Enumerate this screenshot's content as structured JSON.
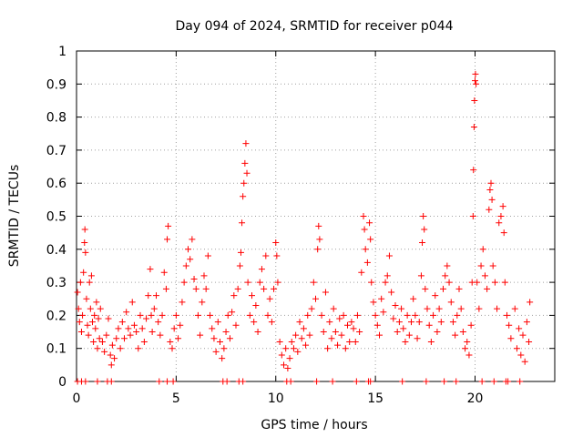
{
  "chart_data": {
    "type": "scatter",
    "title": "Day 094 of 2024, SRMTID for receiver p044",
    "xlabel": "GPS time / hours",
    "ylabel": "SRMTID / TECUs",
    "xlim": [
      0,
      24
    ],
    "ylim": [
      0,
      1
    ],
    "xticks": [
      0,
      5,
      10,
      15,
      20
    ],
    "xtick_labels": [
      "0",
      "5",
      "10",
      "15",
      "20"
    ],
    "yticks": [
      0,
      0.1,
      0.2,
      0.3,
      0.4,
      0.5,
      0.6,
      0.7,
      0.8,
      0.9,
      1
    ],
    "ytick_labels": [
      "0",
      "0.1",
      "0.2",
      "0.3",
      "0.4",
      "0.5",
      "0.6",
      "0.7",
      "0.8",
      "0.9",
      "1"
    ],
    "grid": true,
    "marker": "+",
    "color": "#ff0000",
    "series": [
      {
        "name": "SRMTID",
        "points": [
          [
            0.05,
            0.27
          ],
          [
            0.1,
            0.22
          ],
          [
            0.15,
            0.18
          ],
          [
            0.2,
            0.3
          ],
          [
            0.25,
            0.15
          ],
          [
            0.3,
            0.2
          ],
          [
            0.35,
            0.33
          ],
          [
            0.4,
            0.42
          ],
          [
            0.42,
            0.46
          ],
          [
            0.45,
            0.39
          ],
          [
            0.5,
            0.25
          ],
          [
            0.55,
            0.17
          ],
          [
            0.6,
            0.14
          ],
          [
            0.65,
            0.3
          ],
          [
            0.7,
            0.22
          ],
          [
            0.75,
            0.32
          ],
          [
            0.8,
            0.18
          ],
          [
            0.85,
            0.12
          ],
          [
            0.9,
            0.2
          ],
          [
            0.95,
            0.16
          ],
          [
            1.0,
            0.24
          ],
          [
            1.05,
            0.1
          ],
          [
            1.1,
            0.19
          ],
          [
            1.15,
            0.13
          ],
          [
            1.2,
            0.22
          ],
          [
            1.3,
            0.12
          ],
          [
            1.4,
            0.09
          ],
          [
            1.5,
            0.14
          ],
          [
            1.6,
            0.19
          ],
          [
            1.7,
            0.08
          ],
          [
            1.75,
            0.05
          ],
          [
            1.8,
            0.11
          ],
          [
            1.9,
            0.07
          ],
          [
            2.0,
            0.13
          ],
          [
            2.1,
            0.16
          ],
          [
            2.2,
            0.1
          ],
          [
            2.3,
            0.18
          ],
          [
            2.4,
            0.13
          ],
          [
            2.5,
            0.21
          ],
          [
            2.6,
            0.16
          ],
          [
            2.7,
            0.14
          ],
          [
            2.8,
            0.24
          ],
          [
            2.9,
            0.17
          ],
          [
            3.0,
            0.15
          ],
          [
            3.1,
            0.1
          ],
          [
            3.2,
            0.2
          ],
          [
            3.3,
            0.16
          ],
          [
            3.4,
            0.12
          ],
          [
            3.5,
            0.19
          ],
          [
            3.6,
            0.26
          ],
          [
            3.7,
            0.34
          ],
          [
            3.75,
            0.2
          ],
          [
            3.8,
            0.15
          ],
          [
            3.9,
            0.22
          ],
          [
            4.0,
            0.26
          ],
          [
            4.1,
            0.18
          ],
          [
            4.2,
            0.14
          ],
          [
            4.3,
            0.2
          ],
          [
            4.4,
            0.33
          ],
          [
            4.5,
            0.28
          ],
          [
            4.55,
            0.43
          ],
          [
            4.6,
            0.47
          ],
          [
            4.7,
            0.12
          ],
          [
            4.8,
            0.1
          ],
          [
            4.9,
            0.16
          ],
          [
            5.0,
            0.2
          ],
          [
            5.1,
            0.13
          ],
          [
            5.2,
            0.17
          ],
          [
            5.3,
            0.24
          ],
          [
            5.4,
            0.3
          ],
          [
            5.5,
            0.35
          ],
          [
            5.6,
            0.4
          ],
          [
            5.7,
            0.37
          ],
          [
            5.8,
            0.43
          ],
          [
            5.9,
            0.31
          ],
          [
            6.0,
            0.28
          ],
          [
            6.1,
            0.2
          ],
          [
            6.2,
            0.14
          ],
          [
            6.3,
            0.24
          ],
          [
            6.4,
            0.32
          ],
          [
            6.5,
            0.28
          ],
          [
            6.6,
            0.38
          ],
          [
            6.7,
            0.2
          ],
          [
            6.8,
            0.16
          ],
          [
            6.9,
            0.13
          ],
          [
            7.0,
            0.09
          ],
          [
            7.1,
            0.18
          ],
          [
            7.2,
            0.12
          ],
          [
            7.3,
            0.07
          ],
          [
            7.4,
            0.1
          ],
          [
            7.5,
            0.15
          ],
          [
            7.6,
            0.2
          ],
          [
            7.7,
            0.13
          ],
          [
            7.8,
            0.21
          ],
          [
            7.9,
            0.26
          ],
          [
            8.0,
            0.17
          ],
          [
            8.1,
            0.28
          ],
          [
            8.2,
            0.35
          ],
          [
            8.25,
            0.39
          ],
          [
            8.3,
            0.48
          ],
          [
            8.35,
            0.56
          ],
          [
            8.4,
            0.6
          ],
          [
            8.45,
            0.66
          ],
          [
            8.5,
            0.72
          ],
          [
            8.55,
            0.63
          ],
          [
            8.6,
            0.3
          ],
          [
            8.7,
            0.2
          ],
          [
            8.8,
            0.26
          ],
          [
            8.9,
            0.18
          ],
          [
            9.0,
            0.23
          ],
          [
            9.1,
            0.15
          ],
          [
            9.2,
            0.3
          ],
          [
            9.3,
            0.34
          ],
          [
            9.4,
            0.28
          ],
          [
            9.5,
            0.38
          ],
          [
            9.6,
            0.2
          ],
          [
            9.7,
            0.25
          ],
          [
            9.8,
            0.18
          ],
          [
            9.9,
            0.28
          ],
          [
            10.0,
            0.42
          ],
          [
            10.05,
            0.38
          ],
          [
            10.1,
            0.3
          ],
          [
            10.2,
            0.12
          ],
          [
            10.3,
            0.08
          ],
          [
            10.4,
            0.05
          ],
          [
            10.5,
            0.1
          ],
          [
            10.6,
            0.04
          ],
          [
            10.7,
            0.07
          ],
          [
            10.8,
            0.12
          ],
          [
            10.9,
            0.1
          ],
          [
            11.0,
            0.14
          ],
          [
            11.1,
            0.09
          ],
          [
            11.2,
            0.18
          ],
          [
            11.3,
            0.13
          ],
          [
            11.4,
            0.16
          ],
          [
            11.5,
            0.11
          ],
          [
            11.6,
            0.2
          ],
          [
            11.7,
            0.14
          ],
          [
            11.8,
            0.22
          ],
          [
            11.9,
            0.3
          ],
          [
            12.0,
            0.25
          ],
          [
            12.1,
            0.4
          ],
          [
            12.15,
            0.47
          ],
          [
            12.2,
            0.43
          ],
          [
            12.3,
            0.2
          ],
          [
            12.4,
            0.15
          ],
          [
            12.5,
            0.27
          ],
          [
            12.6,
            0.1
          ],
          [
            12.7,
            0.18
          ],
          [
            12.8,
            0.13
          ],
          [
            12.9,
            0.22
          ],
          [
            13.0,
            0.15
          ],
          [
            13.1,
            0.11
          ],
          [
            13.2,
            0.19
          ],
          [
            13.3,
            0.14
          ],
          [
            13.4,
            0.2
          ],
          [
            13.5,
            0.1
          ],
          [
            13.6,
            0.17
          ],
          [
            13.7,
            0.12
          ],
          [
            13.8,
            0.18
          ],
          [
            13.9,
            0.16
          ],
          [
            14.0,
            0.12
          ],
          [
            14.1,
            0.2
          ],
          [
            14.2,
            0.15
          ],
          [
            14.3,
            0.33
          ],
          [
            14.4,
            0.5
          ],
          [
            14.45,
            0.46
          ],
          [
            14.5,
            0.4
          ],
          [
            14.6,
            0.36
          ],
          [
            14.7,
            0.48
          ],
          [
            14.75,
            0.43
          ],
          [
            14.8,
            0.3
          ],
          [
            14.9,
            0.24
          ],
          [
            15.0,
            0.2
          ],
          [
            15.1,
            0.17
          ],
          [
            15.2,
            0.14
          ],
          [
            15.3,
            0.25
          ],
          [
            15.4,
            0.21
          ],
          [
            15.5,
            0.3
          ],
          [
            15.6,
            0.32
          ],
          [
            15.7,
            0.38
          ],
          [
            15.8,
            0.27
          ],
          [
            15.9,
            0.19
          ],
          [
            16.0,
            0.23
          ],
          [
            16.1,
            0.15
          ],
          [
            16.2,
            0.18
          ],
          [
            16.3,
            0.22
          ],
          [
            16.4,
            0.16
          ],
          [
            16.5,
            0.12
          ],
          [
            16.6,
            0.2
          ],
          [
            16.7,
            0.14
          ],
          [
            16.8,
            0.18
          ],
          [
            16.9,
            0.25
          ],
          [
            17.0,
            0.2
          ],
          [
            17.1,
            0.13
          ],
          [
            17.2,
            0.18
          ],
          [
            17.3,
            0.32
          ],
          [
            17.35,
            0.42
          ],
          [
            17.4,
            0.5
          ],
          [
            17.45,
            0.46
          ],
          [
            17.5,
            0.28
          ],
          [
            17.6,
            0.22
          ],
          [
            17.7,
            0.17
          ],
          [
            17.8,
            0.12
          ],
          [
            17.9,
            0.2
          ],
          [
            18.0,
            0.26
          ],
          [
            18.1,
            0.15
          ],
          [
            18.2,
            0.22
          ],
          [
            18.3,
            0.18
          ],
          [
            18.4,
            0.28
          ],
          [
            18.5,
            0.32
          ],
          [
            18.6,
            0.35
          ],
          [
            18.7,
            0.3
          ],
          [
            18.8,
            0.24
          ],
          [
            18.9,
            0.18
          ],
          [
            19.0,
            0.14
          ],
          [
            19.1,
            0.2
          ],
          [
            19.2,
            0.28
          ],
          [
            19.3,
            0.22
          ],
          [
            19.4,
            0.15
          ],
          [
            19.5,
            0.1
          ],
          [
            19.6,
            0.12
          ],
          [
            19.7,
            0.08
          ],
          [
            19.8,
            0.17
          ],
          [
            19.85,
            0.3
          ],
          [
            19.9,
            0.5
          ],
          [
            19.92,
            0.64
          ],
          [
            19.95,
            0.77
          ],
          [
            19.97,
            0.85
          ],
          [
            20.0,
            0.91
          ],
          [
            20.02,
            0.93
          ],
          [
            20.05,
            0.9
          ],
          [
            20.1,
            0.3
          ],
          [
            20.2,
            0.22
          ],
          [
            20.3,
            0.35
          ],
          [
            20.4,
            0.4
          ],
          [
            20.5,
            0.32
          ],
          [
            20.6,
            0.28
          ],
          [
            20.7,
            0.52
          ],
          [
            20.75,
            0.58
          ],
          [
            20.8,
            0.6
          ],
          [
            20.85,
            0.55
          ],
          [
            20.9,
            0.35
          ],
          [
            21.0,
            0.3
          ],
          [
            21.1,
            0.22
          ],
          [
            21.2,
            0.48
          ],
          [
            21.3,
            0.5
          ],
          [
            21.4,
            0.53
          ],
          [
            21.45,
            0.45
          ],
          [
            21.5,
            0.3
          ],
          [
            21.6,
            0.2
          ],
          [
            21.7,
            0.17
          ],
          [
            21.8,
            0.13
          ],
          [
            22.0,
            0.22
          ],
          [
            22.1,
            0.1
          ],
          [
            22.2,
            0.16
          ],
          [
            22.3,
            0.08
          ],
          [
            22.4,
            0.14
          ],
          [
            22.5,
            0.06
          ],
          [
            22.6,
            0.18
          ],
          [
            22.7,
            0.12
          ],
          [
            22.75,
            0.24
          ],
          [
            0.05,
            0.0
          ],
          [
            0.25,
            0.0
          ],
          [
            0.45,
            0.0
          ],
          [
            1.05,
            0.0
          ],
          [
            1.55,
            0.0
          ],
          [
            1.75,
            0.0
          ],
          [
            4.15,
            0.0
          ],
          [
            4.55,
            0.0
          ],
          [
            4.85,
            0.0
          ],
          [
            7.35,
            0.0
          ],
          [
            7.55,
            0.0
          ],
          [
            8.15,
            0.0
          ],
          [
            8.35,
            0.0
          ],
          [
            10.55,
            0.0
          ],
          [
            10.75,
            0.0
          ],
          [
            12.05,
            0.0
          ],
          [
            12.85,
            0.0
          ],
          [
            14.05,
            0.0
          ],
          [
            14.65,
            0.0
          ],
          [
            14.75,
            0.0
          ],
          [
            16.35,
            0.0
          ],
          [
            17.55,
            0.0
          ],
          [
            18.45,
            0.0
          ],
          [
            19.05,
            0.0
          ],
          [
            20.35,
            0.0
          ],
          [
            20.95,
            0.0
          ],
          [
            21.55,
            0.0
          ],
          [
            21.65,
            0.0
          ],
          [
            22.25,
            0.0
          ]
        ]
      }
    ]
  }
}
